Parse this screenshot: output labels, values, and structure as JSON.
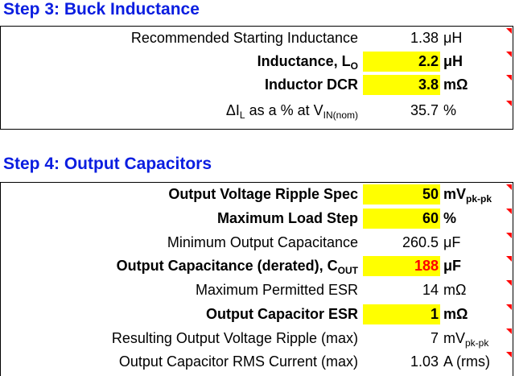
{
  "step3": {
    "title": "Step 3: Buck Inductance",
    "rows": [
      {
        "label": "Recommended Starting Inductance",
        "value": "1.38",
        "unit": "μH"
      },
      {
        "label": "Inductance, L",
        "label_sub": "O",
        "value": "2.2",
        "unit": "μH"
      },
      {
        "label": "Inductor DCR",
        "value": "3.8",
        "unit": "mΩ"
      },
      {
        "label_pre": "ΔI",
        "label_sub1": "L",
        "label_mid": " as a % at V",
        "label_sub2": "IN(nom)",
        "value": "35.7",
        "unit": "%"
      }
    ]
  },
  "step4": {
    "title": "Step 4: Output Capacitors",
    "rows": [
      {
        "label": "Output Voltage Ripple Spec",
        "value": "50",
        "unit": "mV",
        "unit_sub": "pk-pk"
      },
      {
        "label": "Maximum Load Step",
        "value": "60",
        "unit": "%"
      },
      {
        "label": "Minimum Output Capacitance",
        "value": "260.5",
        "unit": "μF"
      },
      {
        "label": "Output Capacitance (derated), C",
        "label_sub": "OUT",
        "value": "188",
        "unit": "μF"
      },
      {
        "label": "Maximum Permitted ESR",
        "value": "14",
        "unit": "mΩ"
      },
      {
        "label": "Output Capacitor ESR",
        "value": "1",
        "unit": "mΩ"
      },
      {
        "label": "Resulting Output Voltage Ripple (max)",
        "value": "7",
        "unit": "mV",
        "unit_sub": "pk-pk"
      },
      {
        "label": "Output Capacitor RMS Current (max)",
        "value": "1.03",
        "unit": "A (rms)"
      }
    ]
  },
  "colors": {
    "heading": "#0a1de0",
    "input_fill": "#ffff00",
    "warning": "#ff0000"
  },
  "icons": {
    "comment_marker": "red-triangle-comment-icon"
  }
}
